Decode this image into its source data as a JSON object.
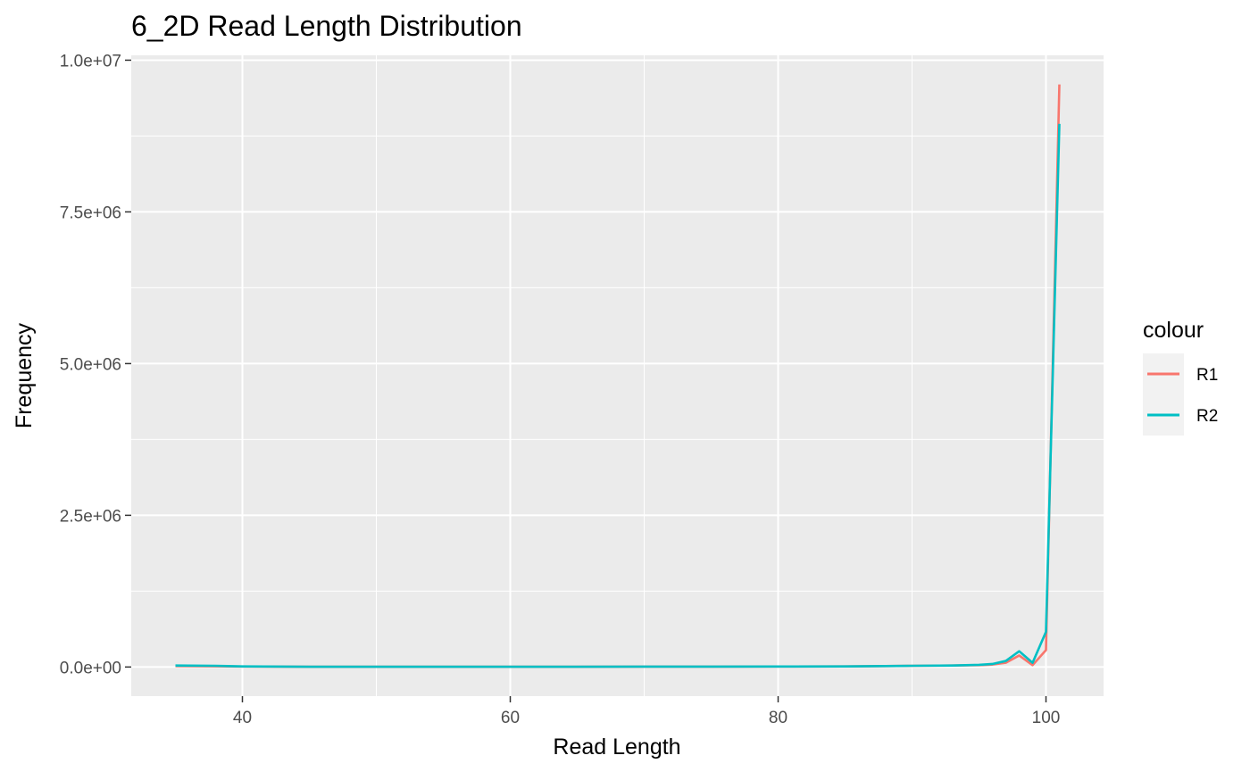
{
  "chart_data": {
    "type": "line",
    "title": "6_2D Read Length Distribution",
    "xlabel": "Read Length",
    "ylabel": "Frequency",
    "xlim": [
      31.7,
      104.3
    ],
    "ylim": [
      -480000,
      10080000
    ],
    "x_ticks": [
      40,
      60,
      80,
      100
    ],
    "x_tick_labels": [
      "40",
      "60",
      "80",
      "100"
    ],
    "y_ticks": [
      0,
      2500000,
      5000000,
      7500000,
      10000000
    ],
    "y_tick_labels": [
      "0.0e+00",
      "2.5e+06",
      "5.0e+06",
      "7.5e+06",
      "1.0e+07"
    ],
    "grid": true,
    "legend": {
      "title": "colour",
      "position": "right"
    },
    "series": [
      {
        "name": "R1",
        "color": "#F8766D",
        "x": [
          35,
          38,
          40,
          45,
          50,
          55,
          60,
          65,
          70,
          75,
          80,
          85,
          88,
          90,
          93,
          95,
          96,
          97,
          98,
          99,
          100,
          101
        ],
        "y": [
          15000,
          12000,
          8000,
          5000,
          4000,
          4000,
          5000,
          5000,
          6000,
          7000,
          8000,
          10000,
          15000,
          20000,
          25000,
          30000,
          40000,
          70000,
          190000,
          30000,
          280000,
          9600000
        ]
      },
      {
        "name": "R2",
        "color": "#00BFC4",
        "x": [
          35,
          38,
          40,
          45,
          50,
          55,
          60,
          65,
          70,
          75,
          80,
          85,
          88,
          90,
          93,
          95,
          96,
          97,
          98,
          99,
          100,
          101
        ],
        "y": [
          25000,
          20000,
          10000,
          5000,
          4000,
          4000,
          5000,
          5000,
          6000,
          7000,
          8000,
          10000,
          15000,
          20000,
          25000,
          35000,
          50000,
          100000,
          260000,
          70000,
          580000,
          8950000
        ]
      }
    ]
  }
}
